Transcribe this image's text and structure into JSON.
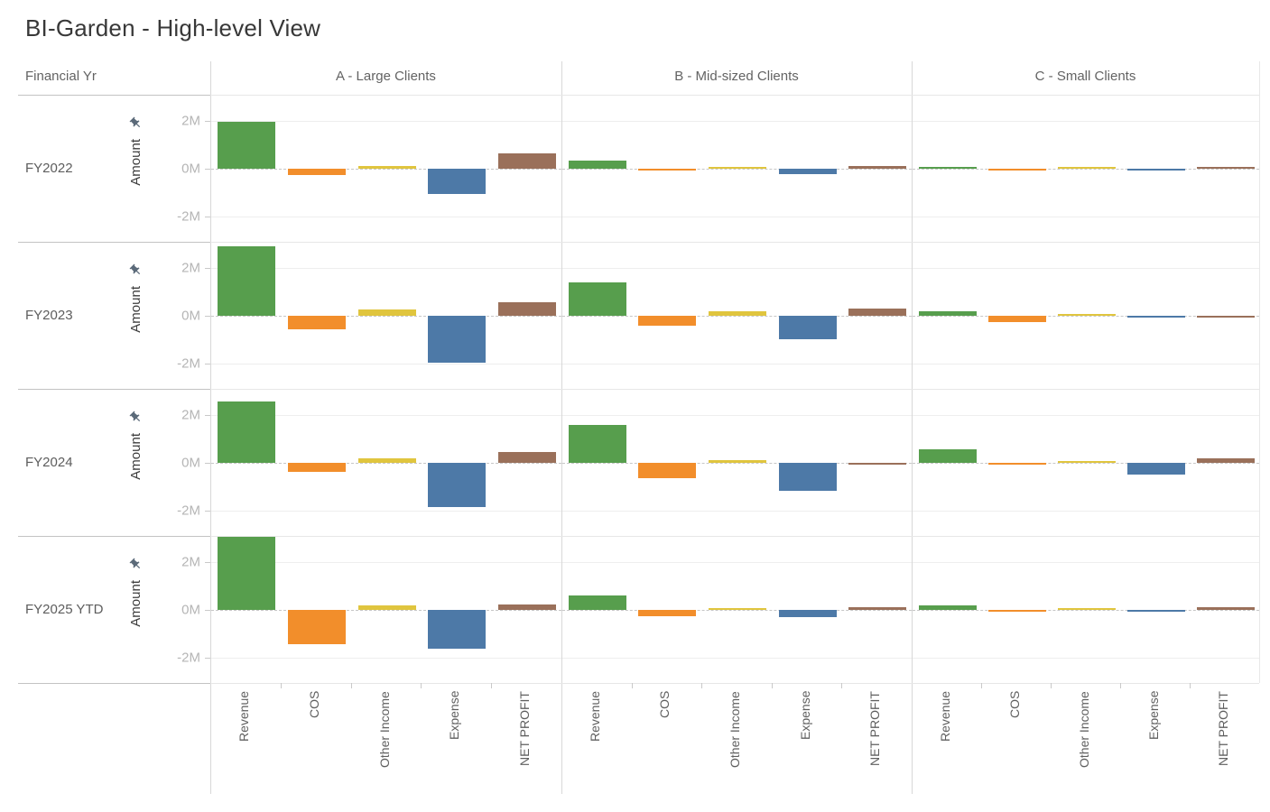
{
  "title": "BI-Garden  -  High-level View",
  "row_dimension_header": "Financial Yr",
  "y_axis": {
    "label": "Amount",
    "pin_icon": "pushpin-icon",
    "ticks": [
      {
        "label": "2M",
        "value": 2
      },
      {
        "label": "0M",
        "value": 0
      },
      {
        "label": "-2M",
        "value": -2
      }
    ]
  },
  "colors": {
    "revenue_green": "#579e4d",
    "cos_orange": "#f28e2b",
    "other_income_yellow": "#e0c53e",
    "expense_blue": "#4d79a7",
    "net_profit_brown": "#9a705a",
    "zero_line_gray": "#c6c6c6",
    "gridline_gray": "#eeeeee"
  },
  "chart_data": {
    "type": "bar",
    "unit": "millions",
    "title": "BI-Garden - High-level View",
    "ylabel": "Amount",
    "ylim": [
      -2.6,
      3.1
    ],
    "legend_position": "none",
    "grid": "horizontal ticks at -2M, 0M (dashed), 2M",
    "categories": [
      "Revenue",
      "COS",
      "Other Income",
      "Expense",
      "NET PROFIT"
    ],
    "category_colors": [
      "#579e4d",
      "#f28e2b",
      "#e0c53e",
      "#4d79a7",
      "#9a705a"
    ],
    "column_groups": [
      "A - Large Clients",
      "B - Mid-sized Clients",
      "C - Small Clients"
    ],
    "rows": [
      {
        "label": "FY2022",
        "values": [
          [
            1.95,
            -0.25,
            0.12,
            -1.05,
            0.65
          ],
          [
            0.33,
            -0.06,
            0.05,
            -0.21,
            0.12
          ],
          [
            0.05,
            -0.03,
            0.04,
            -0.03,
            0.04
          ]
        ]
      },
      {
        "label": "FY2023",
        "values": [
          [
            2.9,
            -0.58,
            0.28,
            -1.95,
            0.57
          ],
          [
            1.4,
            -0.42,
            0.17,
            -0.97,
            0.3
          ],
          [
            0.19,
            -0.25,
            0.05,
            -0.04,
            -0.02
          ]
        ]
      },
      {
        "label": "FY2024",
        "values": [
          [
            2.55,
            -0.38,
            0.17,
            -1.86,
            0.44
          ],
          [
            1.57,
            -0.64,
            0.13,
            -1.18,
            -0.07
          ],
          [
            0.57,
            -0.04,
            0.04,
            -0.48,
            0.18
          ]
        ]
      },
      {
        "label": "FY2025 YTD",
        "values": [
          [
            3.15,
            -1.42,
            0.19,
            -1.61,
            0.22
          ],
          [
            0.59,
            -0.25,
            0.06,
            -0.31,
            0.13
          ],
          [
            0.2,
            -0.03,
            0.05,
            -0.06,
            0.12
          ]
        ]
      }
    ]
  }
}
